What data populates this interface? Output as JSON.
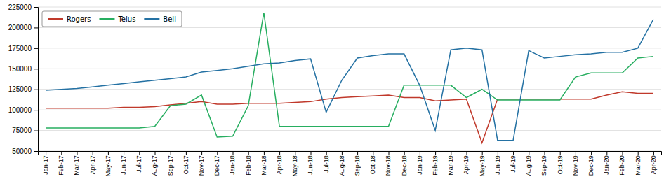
{
  "chart_data": {
    "type": "line",
    "categories": [
      "Jan-17",
      "Feb-17",
      "Mar-17",
      "Apr-17",
      "May-17",
      "Jun-17",
      "Jul-17",
      "Aug-17",
      "Sep-17",
      "Oct-17",
      "Nov-17",
      "Dec-17",
      "Jan-18",
      "Feb-18",
      "Mar-18",
      "Apr-18",
      "May-18",
      "Jun-18",
      "Jul-18",
      "Aug-18",
      "Sep-18",
      "Oct-18",
      "Nov-18",
      "Dec-18",
      "Jan-19",
      "Feb-19",
      "Mar-19",
      "Apr-19",
      "May-19",
      "Jun-19",
      "Jul-19",
      "Aug-19",
      "Sep-19",
      "Oct-19",
      "Nov-19",
      "Dec-19",
      "Jan-20",
      "Feb-20",
      "Mar-20",
      "Apr-20"
    ],
    "series": [
      {
        "name": "Rogers",
        "color": "#c0392b",
        "values": [
          102000,
          102000,
          102000,
          102000,
          102000,
          103000,
          103000,
          104000,
          106000,
          108000,
          110000,
          107000,
          107000,
          108000,
          108000,
          108000,
          109000,
          110000,
          113000,
          115000,
          116000,
          117000,
          118000,
          115000,
          115000,
          111000,
          112000,
          113000,
          60000,
          113000,
          113000,
          113000,
          113000,
          113000,
          113000,
          113000,
          118000,
          122000,
          120000,
          120000
        ]
      },
      {
        "name": "Telus",
        "color": "#27ae60",
        "values": [
          78000,
          78000,
          78000,
          78000,
          78000,
          78000,
          78000,
          80000,
          105000,
          107000,
          118000,
          67000,
          68000,
          105000,
          218000,
          80000,
          80000,
          80000,
          80000,
          80000,
          80000,
          80000,
          80000,
          130000,
          130000,
          130000,
          130000,
          115000,
          125000,
          112000,
          112000,
          112000,
          112000,
          112000,
          140000,
          145000,
          145000,
          145000,
          163000,
          165000
        ]
      },
      {
        "name": "Bell",
        "color": "#2471a3",
        "values": [
          124000,
          125000,
          126000,
          128000,
          130000,
          132000,
          134000,
          136000,
          138000,
          140000,
          146000,
          148000,
          150000,
          153000,
          156000,
          157000,
          160000,
          162000,
          97000,
          136000,
          163000,
          166000,
          168000,
          168000,
          130000,
          75000,
          173000,
          175000,
          173000,
          63000,
          63000,
          172000,
          163000,
          165000,
          167000,
          168000,
          170000,
          170000,
          175000,
          210000
        ]
      }
    ],
    "ylim": [
      50000,
      225000
    ],
    "yticks": [
      50000,
      75000,
      100000,
      125000,
      150000,
      175000,
      200000,
      225000
    ],
    "grid": true,
    "legend": "upper left"
  }
}
